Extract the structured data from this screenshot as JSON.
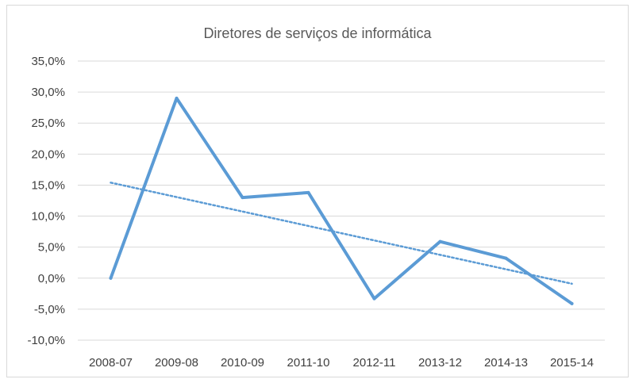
{
  "chart_data": {
    "type": "line",
    "title": "Diretores de serviços de informática",
    "xlabel": "",
    "ylabel": "",
    "categories": [
      "2008-07",
      "2009-08",
      "2010-09",
      "2011-10",
      "2012-11",
      "2013-12",
      "2014-13",
      "2015-14"
    ],
    "series": [
      {
        "values": [
          0.0,
          29.0,
          13.0,
          13.8,
          -3.3,
          5.9,
          3.2,
          -4.1
        ],
        "color": "#5b9bd5",
        "style": "solid"
      }
    ],
    "trendline": {
      "start": 15.4,
      "end": -0.9,
      "color": "#5b9bd5",
      "style": "dotted"
    },
    "ylim": [
      -10,
      35
    ],
    "yticks": [
      35,
      30,
      25,
      20,
      15,
      10,
      5,
      0,
      -5,
      -10
    ],
    "ytick_labels": [
      "35,0%",
      "30,0%",
      "25,0%",
      "20,0%",
      "15,0%",
      "10,0%",
      "5,0%",
      "0,0%",
      "-5,0%",
      "-10,0%"
    ],
    "grid": true,
    "legend": "none"
  }
}
